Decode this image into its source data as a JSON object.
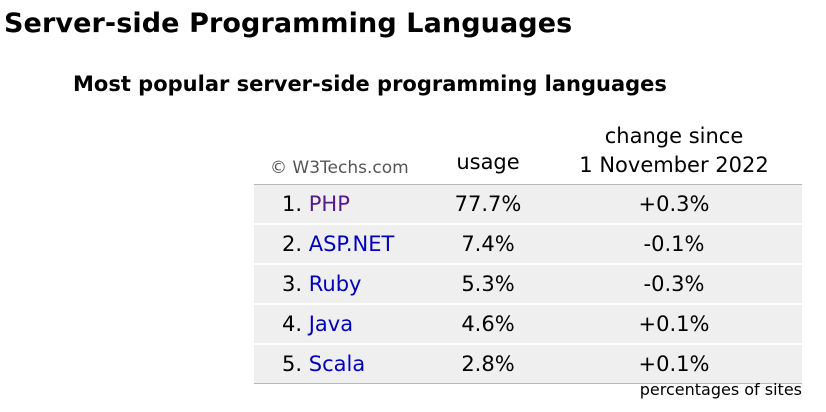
{
  "page": {
    "title": "Server-side Programming Languages"
  },
  "chart_data": {
    "type": "table",
    "title": "Most popular server-side programming languages",
    "source": "© W3Techs.com",
    "columns": [
      "usage",
      "change since 1 November 2022"
    ],
    "change_header": {
      "line1": "change since",
      "line2": "1 November 2022"
    },
    "rows": [
      {
        "rank": "1.",
        "name": "PHP",
        "usage": "77.7%",
        "usage_value": 77.7,
        "change": "+0.3%",
        "change_value": 0.3,
        "visited": true
      },
      {
        "rank": "2.",
        "name": "ASP.NET",
        "usage": "7.4%",
        "usage_value": 7.4,
        "change": "-0.1%",
        "change_value": -0.1,
        "visited": false
      },
      {
        "rank": "3.",
        "name": "Ruby",
        "usage": "5.3%",
        "usage_value": 5.3,
        "change": "-0.3%",
        "change_value": -0.3,
        "visited": false
      },
      {
        "rank": "4.",
        "name": "Java",
        "usage": "4.6%",
        "usage_value": 4.6,
        "change": "+0.1%",
        "change_value": 0.1,
        "visited": false
      },
      {
        "rank": "5.",
        "name": "Scala",
        "usage": "2.8%",
        "usage_value": 2.8,
        "change": "+0.1%",
        "change_value": 0.1,
        "visited": false
      }
    ],
    "footnote": "percentages of sites"
  },
  "colors": {
    "link": "#0000bb",
    "visited_link": "#551a8b",
    "row_background": "#efefef",
    "source_text": "#555555"
  }
}
